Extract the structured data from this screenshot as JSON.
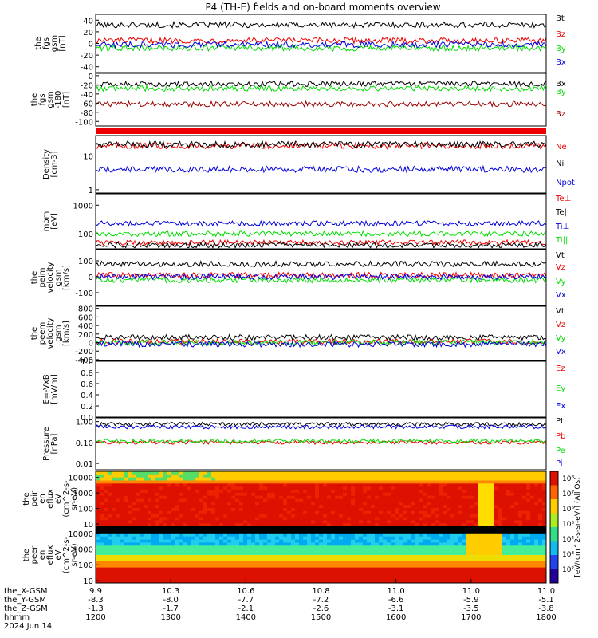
{
  "title": "P4 (TH-E) fields and on-board moments overview",
  "date_label": "2024 Jun 14",
  "time_axis": {
    "row_labels": [
      "the_X-GSM",
      "the_Y-GSM",
      "the_Z-GSM",
      "hhmm"
    ],
    "ticks": [
      {
        "values": [
          "9.9",
          "-8.3",
          "-1.3",
          "1200"
        ]
      },
      {
        "values": [
          "10.3",
          "-8.0",
          "-1.7",
          "1300"
        ]
      },
      {
        "values": [
          "10.6",
          "-7.7",
          "-2.1",
          "1400"
        ]
      },
      {
        "values": [
          "10.8",
          "-7.2",
          "-2.6",
          "1500"
        ]
      },
      {
        "values": [
          "11.0",
          "-6.6",
          "-3.1",
          "1600"
        ]
      },
      {
        "values": [
          "11.0",
          "-5.9",
          "-3.5",
          "1700"
        ]
      },
      {
        "values": [
          "11.0",
          "-5.1",
          "-3.8",
          "1800"
        ]
      }
    ]
  },
  "colorbar": {
    "ticks": [
      "10⁸",
      "10⁷",
      "10⁶",
      "10⁵",
      "10⁴",
      "10³",
      "10²"
    ],
    "label": "[eV/(cm^2-s-sr-eV)] (All Qs)"
  },
  "colors": {
    "black": "#000000",
    "red": "#ee0000",
    "green": "#00dd00",
    "blue": "#0000dd",
    "darkred": "#990000"
  },
  "chart_data": [
    {
      "type": "line",
      "ylabel": [
        "the",
        "fgs",
        "gsm",
        "[nT]"
      ],
      "ylim": [
        -50,
        50
      ],
      "yscale": "linear",
      "yticks": [
        "40",
        "20",
        "0",
        "-20",
        "-40"
      ],
      "series": [
        {
          "name": "Bt",
          "color": "#000000",
          "level": 32
        },
        {
          "name": "Bz",
          "color": "#ee0000",
          "level": 5
        },
        {
          "name": "By",
          "color": "#00dd00",
          "level": -8
        },
        {
          "name": "Bx",
          "color": "#0000dd",
          "level": -2
        }
      ]
    },
    {
      "type": "line",
      "ylabel": [
        "the",
        "fgs",
        "gsm",
        "-180",
        "[nT]"
      ],
      "ylim": [
        -110,
        5
      ],
      "yscale": "linear",
      "yticks": [
        "0",
        "-20",
        "-40",
        "-60",
        "-80",
        "-100"
      ],
      "series": [
        {
          "name": "Bx",
          "color": "#000000",
          "level": -18
        },
        {
          "name": "By",
          "color": "#00dd00",
          "level": -28
        },
        {
          "name": "Bz",
          "color": "#990000",
          "level": -62
        }
      ]
    },
    {
      "type": "line",
      "ylabel": [
        "Density",
        "[cm-3]"
      ],
      "ylim": [
        0.8,
        40
      ],
      "yscale": "log",
      "yticks": [
        "10",
        "1"
      ],
      "series": [
        {
          "name": "Ne",
          "color": "#ee0000",
          "level": 20
        },
        {
          "name": "Ni",
          "color": "#000000",
          "level": 22
        },
        {
          "name": "Npot",
          "color": "#0000dd",
          "level": 4
        }
      ]
    },
    {
      "type": "line",
      "ylabel": [
        "mom",
        "[eV]"
      ],
      "ylim": [
        30,
        2500
      ],
      "yscale": "log",
      "yticks": [
        "1000",
        "100"
      ],
      "series": [
        {
          "name": "Te⊥",
          "color": "#ee0000",
          "level": 50
        },
        {
          "name": "Te||",
          "color": "#000000",
          "level": 40
        },
        {
          "name": "Ti⊥",
          "color": "#0000dd",
          "level": 230
        },
        {
          "name": "Ti||",
          "color": "#00dd00",
          "level": 100
        }
      ]
    },
    {
      "type": "line",
      "ylabel": [
        "the",
        "peim",
        "velocity",
        "gsm",
        "[km/s]"
      ],
      "ylim": [
        -180,
        170
      ],
      "yscale": "linear",
      "yticks": [
        "100",
        "0",
        "-100"
      ],
      "series": [
        {
          "name": "Vt",
          "color": "#000000",
          "level": 80
        },
        {
          "name": "Vz",
          "color": "#ee0000",
          "level": 10
        },
        {
          "name": "Vy",
          "color": "#00dd00",
          "level": -20
        },
        {
          "name": "Vx",
          "color": "#0000dd",
          "level": 0
        }
      ]
    },
    {
      "type": "line",
      "ylabel": [
        "the",
        "peem",
        "velocity",
        "gsm",
        "[km/s]"
      ],
      "ylim": [
        -420,
        850
      ],
      "yscale": "linear",
      "yticks": [
        "800",
        "600",
        "400",
        "200",
        "0",
        "-200",
        "-400"
      ],
      "series": [
        {
          "name": "Vt",
          "color": "#000000",
          "level": 120
        },
        {
          "name": "Vz",
          "color": "#ee0000",
          "level": 20
        },
        {
          "name": "Vy",
          "color": "#00dd00",
          "level": 0
        },
        {
          "name": "Vx",
          "color": "#0000dd",
          "level": -40
        }
      ]
    },
    {
      "type": "line",
      "ylabel": [
        "E=-VxB",
        "[mV/m]"
      ],
      "ylim": [
        0,
        1
      ],
      "yscale": "linear",
      "yticks": [
        "1.0",
        "0.8",
        "0.6",
        "0.4",
        "0.2",
        "0.0"
      ],
      "series": [
        {
          "name": "Ez",
          "color": "#ee0000",
          "level": null
        },
        {
          "name": "Ey",
          "color": "#00dd00",
          "level": null
        },
        {
          "name": "Ex",
          "color": "#0000dd",
          "level": null
        }
      ]
    },
    {
      "type": "line",
      "ylabel": [
        "Pressure",
        "[nPa]"
      ],
      "ylim": [
        0.005,
        1.5
      ],
      "yscale": "log",
      "yticks": [
        "1.00",
        "0.10",
        "0.01"
      ],
      "series": [
        {
          "name": "Pt",
          "color": "#000000",
          "level": 0.75
        },
        {
          "name": "Pb",
          "color": "#ee0000",
          "level": 0.1
        },
        {
          "name": "Pe",
          "color": "#00dd00",
          "level": 0.12
        },
        {
          "name": "Pi",
          "color": "#0000dd",
          "level": 0.55
        }
      ]
    },
    {
      "type": "heatmap",
      "ylabel": [
        "the",
        "peir",
        "en",
        "eflux",
        "eV",
        "(cm^2-s-",
        "sr-eV)"
      ],
      "ylim": [
        7,
        25000
      ],
      "yscale": "log",
      "yticks": [
        "10000",
        "1000",
        "100",
        "10"
      ]
    },
    {
      "type": "heatmap",
      "ylabel": [
        "the",
        "peer",
        "en",
        "eflux",
        "eV",
        "(cm^2-s-",
        "sr-eV)"
      ],
      "ylim": [
        7,
        25000
      ],
      "yscale": "log",
      "yticks": [
        "10000",
        "1000",
        "100",
        "10"
      ]
    }
  ]
}
